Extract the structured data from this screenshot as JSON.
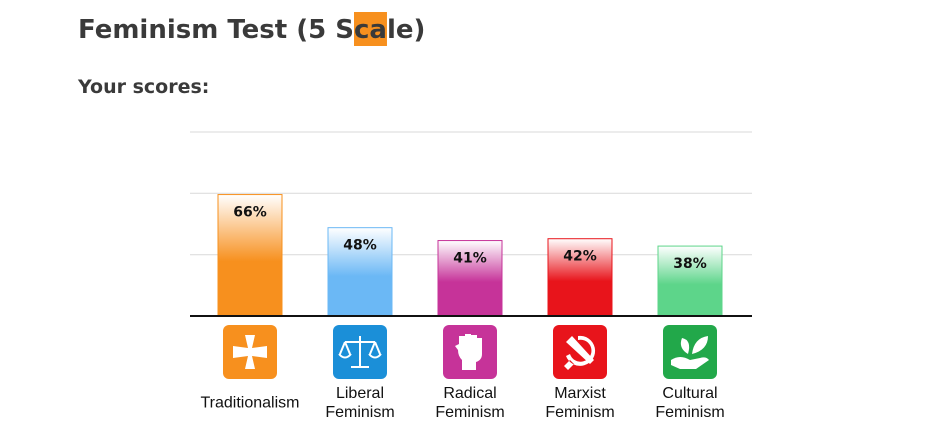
{
  "header": {
    "title": "Feminism Test (5 Scale)",
    "subtitle": "Your scores:"
  },
  "chart_data": {
    "type": "bar",
    "categories": [
      "Traditionalism",
      "Liberal Feminism",
      "Radical Feminism",
      "Marxist Feminism",
      "Cultural Feminism"
    ],
    "values": [
      66,
      48,
      41,
      42,
      38
    ],
    "value_labels": [
      "66%",
      "48%",
      "41%",
      "42%",
      "38%"
    ],
    "colors": [
      "#f7901e",
      "#6bb8f5",
      "#c63399",
      "#e8141b",
      "#5dd58a"
    ],
    "ylim": [
      0,
      100
    ],
    "yticks": [
      0,
      33.3,
      66.7,
      100
    ],
    "grid": true
  }
}
